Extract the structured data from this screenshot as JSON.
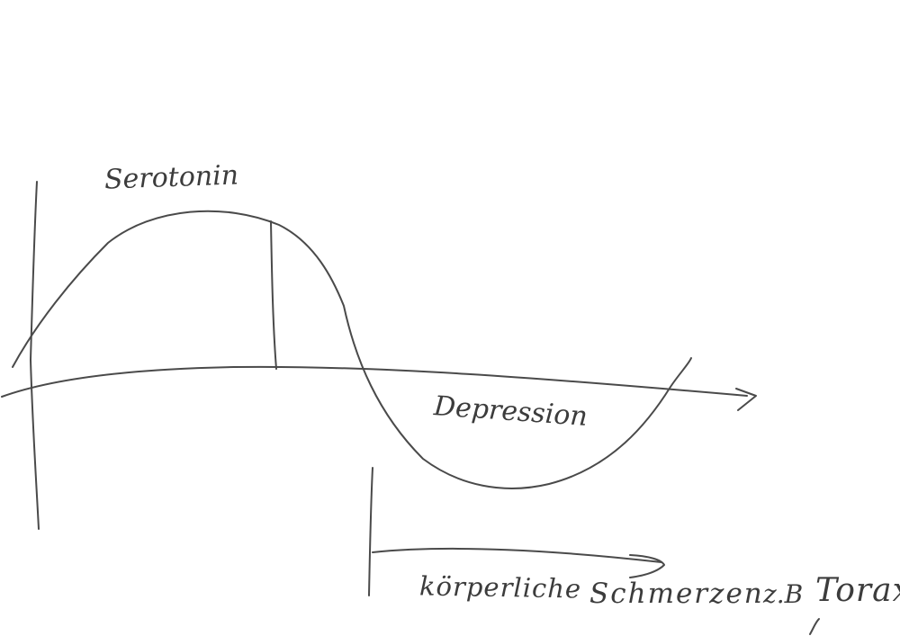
{
  "labels": {
    "serotonin": "Serotonin",
    "depression": "Depression",
    "koerperliche": "körperliche",
    "schmerzen": "Schmerzen",
    "zb": "z.B",
    "torax": "Torax"
  },
  "colors": {
    "ink": "#4a4a4a",
    "background": "#ffffff"
  }
}
